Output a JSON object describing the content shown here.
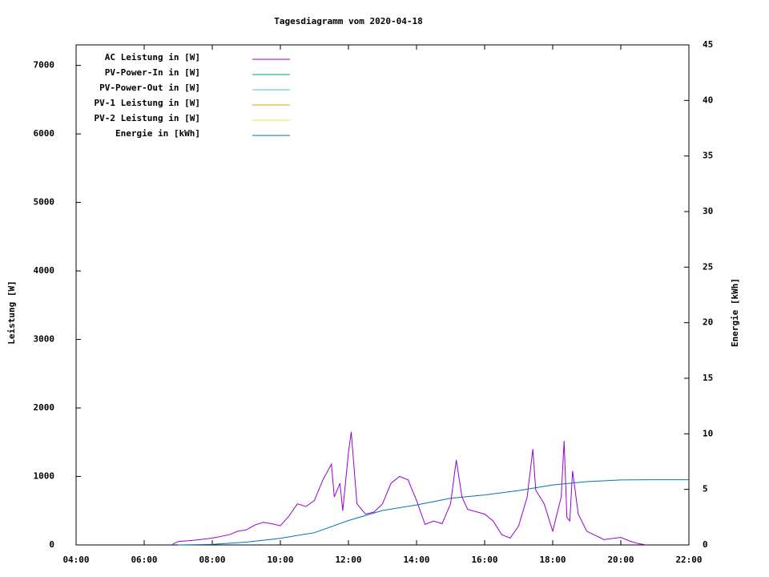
{
  "chart_data": {
    "type": "line",
    "title": "Tagesdiagramm vom 2020-04-18",
    "y_label": "Leistung [W]",
    "y2_label": "Energie [kWh]",
    "xlim": [
      "04:00",
      "22:00"
    ],
    "xticks": [
      "04:00",
      "06:00",
      "08:00",
      "10:00",
      "12:00",
      "14:00",
      "16:00",
      "18:00",
      "20:00",
      "22:00"
    ],
    "ylim": [
      0,
      7300
    ],
    "yticks": [
      0,
      1000,
      2000,
      3000,
      4000,
      5000,
      6000,
      7000
    ],
    "y2lim": [
      0,
      45
    ],
    "y2ticks": [
      0,
      5,
      10,
      15,
      20,
      25,
      30,
      35,
      40,
      45
    ],
    "series": [
      {
        "name": "AC Leistung in [W]",
        "color": "#9400d3",
        "x": [
          "06:50",
          "07:00",
          "07:30",
          "08:00",
          "08:30",
          "08:45",
          "09:00",
          "09:15",
          "09:30",
          "09:45",
          "10:00",
          "10:15",
          "10:30",
          "10:45",
          "11:00",
          "11:15",
          "11:30",
          "11:35",
          "11:45",
          "11:50",
          "12:00",
          "12:05",
          "12:15",
          "12:30",
          "12:45",
          "13:00",
          "13:15",
          "13:30",
          "13:45",
          "14:00",
          "14:15",
          "14:30",
          "14:45",
          "15:00",
          "15:10",
          "15:20",
          "15:30",
          "16:00",
          "16:15",
          "16:30",
          "16:45",
          "17:00",
          "17:15",
          "17:25",
          "17:30",
          "17:45",
          "18:00",
          "18:15",
          "18:20",
          "18:25",
          "18:30",
          "18:35",
          "18:45",
          "19:00",
          "19:30",
          "20:00",
          "20:15",
          "20:30",
          "20:45"
        ],
        "values": [
          10,
          50,
          70,
          100,
          150,
          200,
          220,
          290,
          330,
          310,
          280,
          420,
          600,
          560,
          650,
          950,
          1180,
          700,
          900,
          500,
          1350,
          1650,
          600,
          450,
          480,
          600,
          900,
          1000,
          950,
          650,
          300,
          350,
          310,
          600,
          1240,
          700,
          520,
          450,
          350,
          150,
          100,
          280,
          700,
          1400,
          800,
          600,
          200,
          700,
          1520,
          400,
          350,
          1080,
          450,
          200,
          80,
          110,
          60,
          20,
          0
        ]
      },
      {
        "name": "PV-Power-In in [W]",
        "color": "#009e73",
        "x": [],
        "values": []
      },
      {
        "name": "PV-Power-Out in [W]",
        "color": "#56b4e9",
        "x": [],
        "values": []
      },
      {
        "name": "PV-1 Leistung in [W]",
        "color": "#e69f00",
        "x": [],
        "values": []
      },
      {
        "name": "PV-2 Leistung in [W]",
        "color": "#f0e442",
        "x": [],
        "values": []
      },
      {
        "name": "Energie in [kWh]",
        "color": "#0072b2",
        "axis": "y2",
        "x": [
          "07:00",
          "08:00",
          "09:00",
          "10:00",
          "11:00",
          "12:00",
          "13:00",
          "14:00",
          "15:00",
          "16:00",
          "17:00",
          "18:00",
          "19:00",
          "20:00",
          "21:00",
          "22:00"
        ],
        "values": [
          0,
          0.05,
          0.25,
          0.6,
          1.1,
          2.2,
          3.1,
          3.6,
          4.2,
          4.5,
          4.9,
          5.4,
          5.7,
          5.85,
          5.87,
          5.87
        ]
      }
    ]
  }
}
